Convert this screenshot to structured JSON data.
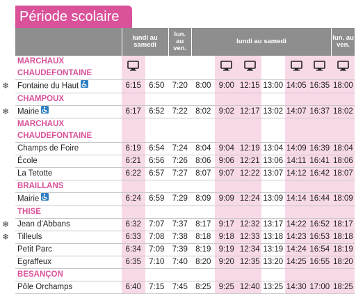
{
  "title": "Période scolaire",
  "header": {
    "groups": [
      {
        "label": "lundi au samedi",
        "span": 2
      },
      {
        "label": "lun. au ven.",
        "span": 1
      },
      {
        "label": "lundi au samedi",
        "span": 6
      },
      {
        "label": "lun. au ven.",
        "span": 1
      }
    ]
  },
  "screen_columns": [
    true,
    false,
    false,
    false,
    true,
    true,
    false,
    true,
    true,
    true
  ],
  "sections": [
    {
      "town": "MARCHAUX CHAUDEFONTAINE",
      "screen_icons": true,
      "stops": [
        {
          "name": "Fontaine du Haut",
          "snow": true,
          "wheelchair": true,
          "times": [
            "6:15",
            "6:50",
            "7:20",
            "8:00",
            "9:00",
            "12:15",
            "13:00",
            "14:05",
            "16:35",
            "18:00"
          ]
        }
      ]
    },
    {
      "town": "CHAMPOUX",
      "screen_icons": false,
      "stops": [
        {
          "name": "Mairie",
          "snow": true,
          "wheelchair": true,
          "times": [
            "6:17",
            "6:52",
            "7:22",
            "8:02",
            "9:02",
            "12:17",
            "13:02",
            "14:07",
            "16:37",
            "18:02"
          ]
        }
      ]
    },
    {
      "town": "MARCHAUX CHAUDEFONTAINE",
      "screen_icons": false,
      "stops": [
        {
          "name": "Champs de Foire",
          "snow": false,
          "wheelchair": false,
          "times": [
            "6:19",
            "6:54",
            "7:24",
            "8:04",
            "9:04",
            "12:19",
            "13:04",
            "14:09",
            "16:39",
            "18:04"
          ]
        },
        {
          "name": "École",
          "snow": false,
          "wheelchair": false,
          "times": [
            "6:21",
            "6:56",
            "7:26",
            "8:06",
            "9:06",
            "12:21",
            "13:06",
            "14:11",
            "16:41",
            "18:06"
          ]
        },
        {
          "name": "La Tetotte",
          "snow": false,
          "wheelchair": false,
          "times": [
            "6:22",
            "6:57",
            "7:27",
            "8:07",
            "9:07",
            "12:22",
            "13:07",
            "14:12",
            "16:42",
            "18:07"
          ]
        }
      ]
    },
    {
      "town": "BRAILLANS",
      "screen_icons": false,
      "stops": [
        {
          "name": "Mairie",
          "snow": false,
          "wheelchair": true,
          "times": [
            "6:24",
            "6:59",
            "7:29",
            "8:09",
            "9:09",
            "12:24",
            "13:09",
            "14:14",
            "16:44",
            "18:09"
          ]
        }
      ]
    },
    {
      "town": "THISE",
      "screen_icons": false,
      "stops": [
        {
          "name": "Jean d'Abbans",
          "snow": true,
          "wheelchair": false,
          "times": [
            "6:32",
            "7:07",
            "7:37",
            "8:17",
            "9:17",
            "12:32",
            "13:17",
            "14:22",
            "16:52",
            "18:17"
          ]
        },
        {
          "name": "Tilleuls",
          "snow": true,
          "wheelchair": false,
          "times": [
            "6:33",
            "7:08",
            "7:38",
            "8:18",
            "9:18",
            "12:33",
            "13:18",
            "14:23",
            "16:53",
            "18:18"
          ]
        },
        {
          "name": "Petit Parc",
          "snow": false,
          "wheelchair": false,
          "times": [
            "6:34",
            "7:09",
            "7:39",
            "8:19",
            "9:19",
            "12:34",
            "13:19",
            "14:24",
            "16:54",
            "18:19"
          ]
        },
        {
          "name": "Egraffeux",
          "snow": false,
          "wheelchair": false,
          "times": [
            "6:35",
            "7:10",
            "7:40",
            "8:20",
            "9:20",
            "12:35",
            "13:20",
            "14:25",
            "16:55",
            "18:20"
          ]
        }
      ]
    },
    {
      "town": "BESANÇON",
      "screen_icons": false,
      "stops": [
        {
          "name": "Pôle Orchamps",
          "snow": false,
          "wheelchair": false,
          "times": [
            "6:40",
            "7:15",
            "7:45",
            "8:25",
            "9:25",
            "12:40",
            "13:25",
            "14:30",
            "17:00",
            "18:25"
          ]
        }
      ]
    }
  ]
}
